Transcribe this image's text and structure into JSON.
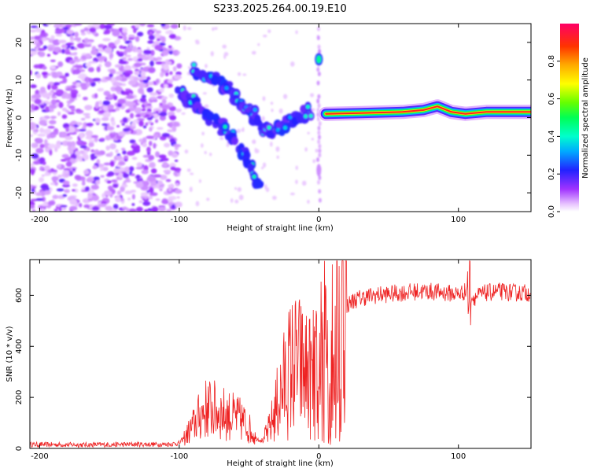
{
  "title": "S233.2025.264.00.19.E10",
  "chart_data": [
    {
      "type": "heatmap",
      "name": "spectrogram",
      "xlabel": "Height of straight line (km)",
      "ylabel": "Frequency (Hz)",
      "xlim": [
        -207,
        152
      ],
      "ylim": [
        -25,
        25
      ],
      "xticks": [
        -200,
        -100,
        0,
        100
      ],
      "xtick_labels": [
        "-200",
        "-100",
        "0",
        "100"
      ],
      "yticks": [
        -20,
        -10,
        0,
        10,
        20
      ],
      "ytick_labels": [
        "-20",
        "-10",
        "0",
        "10",
        "20"
      ],
      "colorbar": {
        "label": "Normalized spectral amplitude",
        "range": [
          0,
          1
        ],
        "ticks": [
          0.0,
          0.2,
          0.4,
          0.6,
          0.8
        ],
        "tick_labels": [
          "0.0",
          "0.2",
          "0.4",
          "0.6",
          "0.8"
        ]
      },
      "features": [
        {
          "label": "noise scatter",
          "x_range": [
            -207,
            -100
          ],
          "freq_range": [
            -25,
            25
          ],
          "amplitude": 0.1
        },
        {
          "label": "descending branch",
          "points": [
            [
              -100,
              7
            ],
            [
              -90,
              4
            ],
            [
              -80,
              1
            ],
            [
              -70,
              -2
            ],
            [
              -60,
              -6
            ],
            [
              -50,
              -12
            ],
            [
              -42,
              -19
            ]
          ],
          "amplitude": 0.35
        },
        {
          "label": "upper branch",
          "points": [
            [
              -90,
              13
            ],
            [
              -80,
              11
            ],
            [
              -70,
              9
            ],
            [
              -62,
              6
            ],
            [
              -55,
              3
            ],
            [
              -48,
              1
            ],
            [
              -40,
              -3
            ],
            [
              -33,
              -4
            ],
            [
              -25,
              -2
            ],
            [
              -15,
              0
            ],
            [
              -5,
              2
            ]
          ],
          "amplitude": 0.3
        },
        {
          "label": "tone at zero height",
          "points": [
            [
              0,
              15.5
            ]
          ],
          "amplitude": 0.45
        },
        {
          "label": "carrier",
          "points": [
            [
              5,
              1
            ],
            [
              30,
              1.2
            ],
            [
              60,
              1.5
            ],
            [
              75,
              2
            ],
            [
              85,
              3
            ],
            [
              95,
              1.5
            ],
            [
              105,
              1
            ],
            [
              120,
              1.5
            ],
            [
              152,
              1.5
            ]
          ],
          "amplitude": 0.9
        }
      ]
    },
    {
      "type": "line",
      "name": "snr",
      "xlabel": "Height of straight line (km)",
      "ylabel": "SNR (10 * v/v)",
      "xlim": [
        -207,
        152
      ],
      "ylim": [
        0,
        740
      ],
      "xticks": [
        -200,
        -100,
        0,
        100
      ],
      "xtick_labels": [
        "-200",
        "-100",
        "0",
        "100"
      ],
      "yticks": [
        0,
        200,
        400,
        600
      ],
      "ytick_labels": [
        "0",
        "200",
        "400",
        "600"
      ],
      "color": "#ee2222",
      "series": [
        {
          "name": "SNR",
          "x": [
            -207,
            -190,
            -170,
            -150,
            -130,
            -110,
            -100,
            -95,
            -90,
            -85,
            -80,
            -75,
            -70,
            -65,
            -60,
            -55,
            -50,
            -45,
            -40,
            -35,
            -30,
            -25,
            -20,
            -15,
            -10,
            -5,
            0,
            5,
            10,
            15,
            20,
            25,
            30,
            40,
            50,
            60,
            70,
            80,
            90,
            100,
            107,
            110,
            120,
            130,
            140,
            152
          ],
          "y": [
            15,
            15,
            14,
            15,
            16,
            16,
            20,
            50,
            90,
            130,
            160,
            150,
            140,
            130,
            120,
            110,
            80,
            40,
            30,
            80,
            170,
            250,
            320,
            330,
            300,
            280,
            330,
            420,
            480,
            530,
            560,
            580,
            590,
            600,
            605,
            610,
            615,
            615,
            610,
            605,
            620,
            590,
            610,
            615,
            610,
            610
          ]
        }
      ]
    }
  ]
}
